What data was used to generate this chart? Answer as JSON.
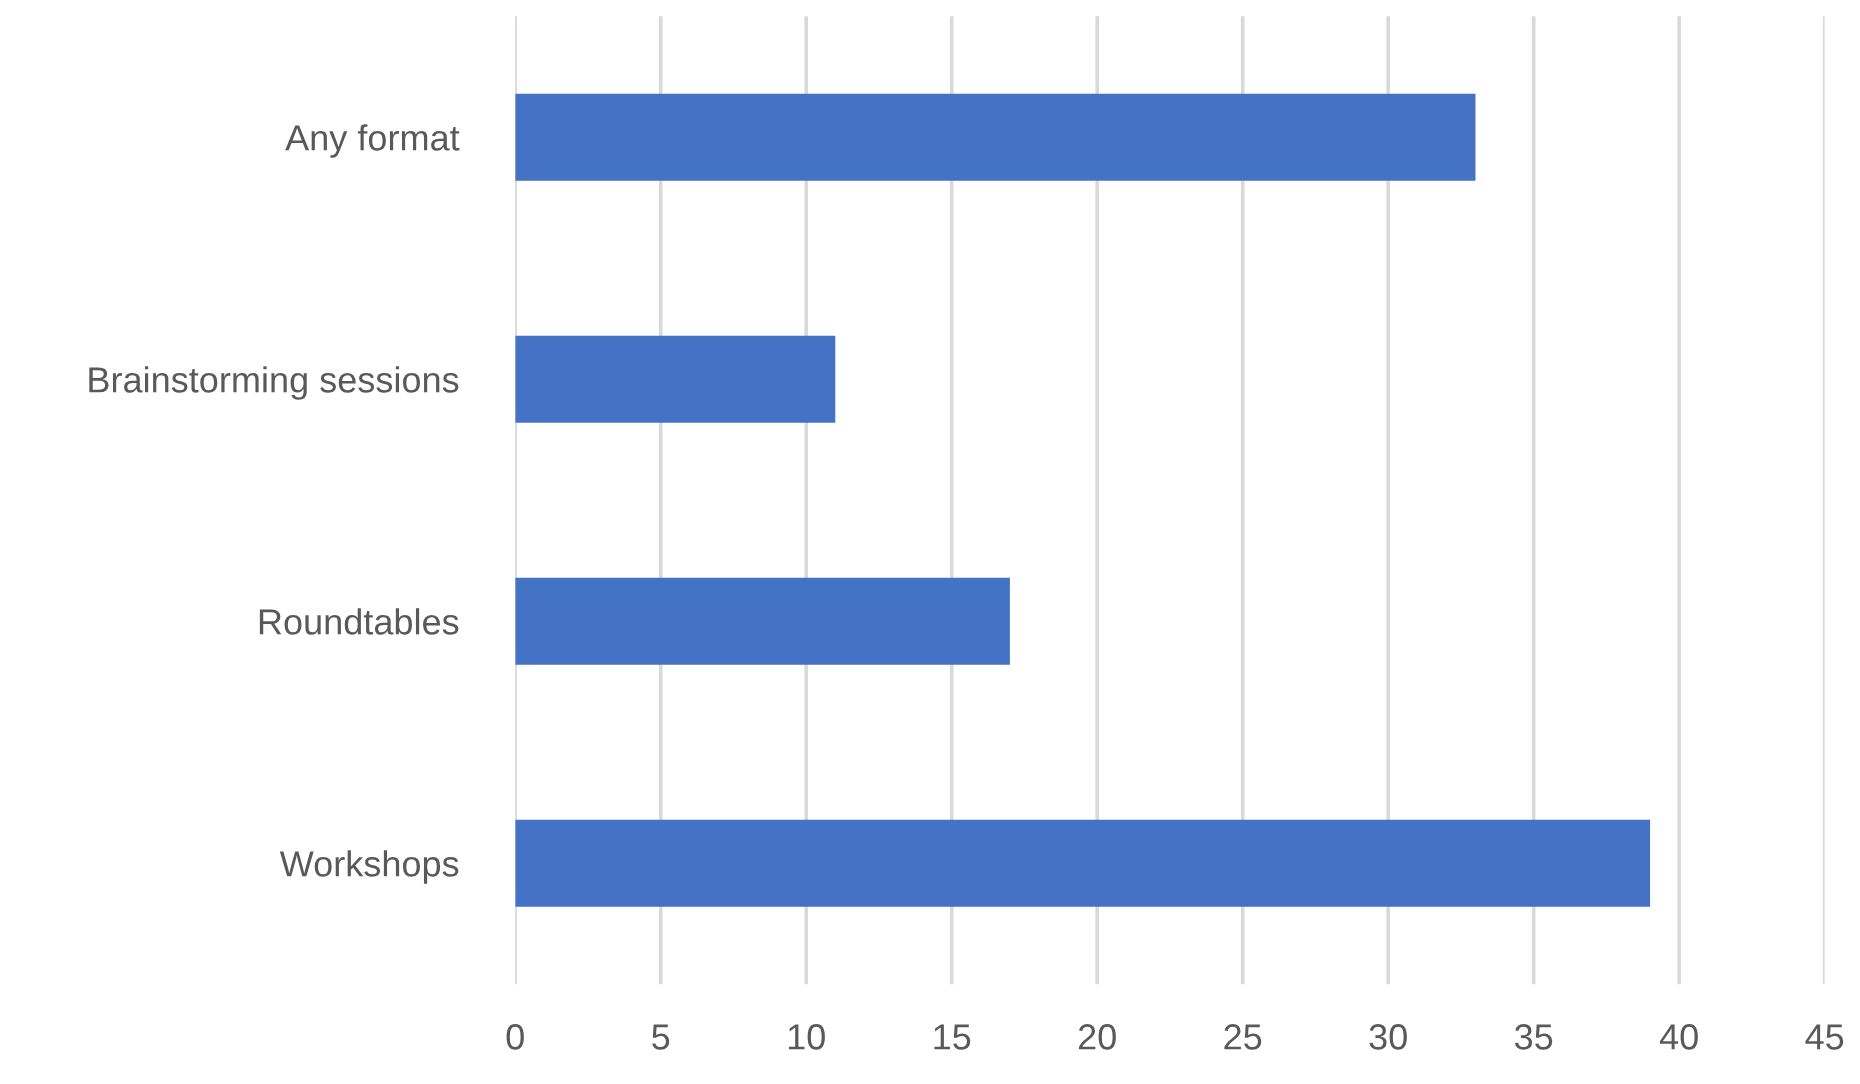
{
  "chart_data": {
    "type": "bar",
    "orientation": "horizontal",
    "categories": [
      "Any format",
      "Brainstorming sessions",
      "Roundtables",
      "Workshops"
    ],
    "values": [
      33,
      11,
      17,
      39
    ],
    "color": "#4472c4",
    "xlim": [
      0,
      45
    ],
    "xticks": [
      0,
      5,
      10,
      15,
      20,
      25,
      30,
      35,
      40,
      45
    ],
    "grid": "x"
  }
}
